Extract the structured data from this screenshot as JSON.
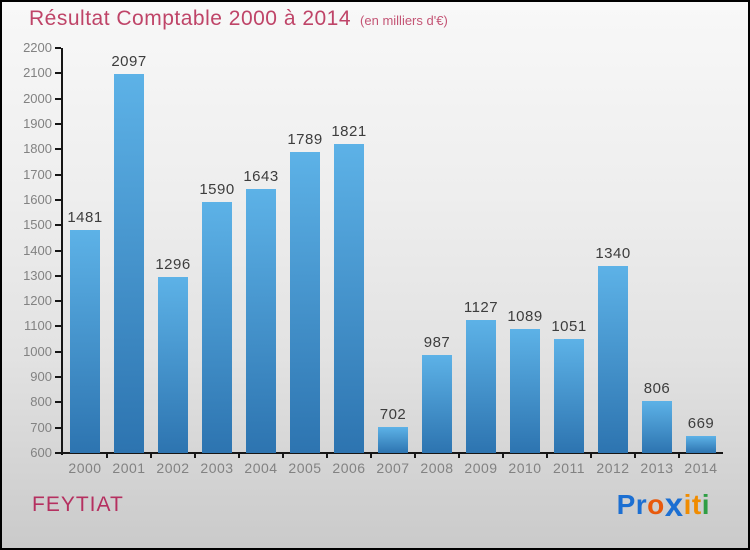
{
  "header": {
    "title": "Résultat Comptable 2000 à 2014",
    "subtitle": "(en milliers d'€)",
    "title_color": "#bf4468"
  },
  "chart_data": {
    "type": "bar",
    "title": "Résultat Comptable 2000 à 2014",
    "subtitle": "(en milliers d'€)",
    "categories": [
      "2000",
      "2001",
      "2002",
      "2003",
      "2004",
      "2005",
      "2006",
      "2007",
      "2008",
      "2009",
      "2010",
      "2011",
      "2012",
      "2013",
      "2014"
    ],
    "values": [
      1481,
      2097,
      1296,
      1590,
      1643,
      1789,
      1821,
      702,
      987,
      1127,
      1089,
      1051,
      1340,
      806,
      669
    ],
    "xlabel": "",
    "ylabel": "",
    "ylim": [
      600,
      2200
    ],
    "ytick_step": 100,
    "grid": false,
    "legend": false,
    "value_labels_shown": true,
    "bar_gradient_top": "#5db2e7",
    "bar_gradient_bottom": "#2d74b0",
    "axis_color": "#161616",
    "tick_label_color": "#828282",
    "value_label_color": "#3d3d3d"
  },
  "footer": {
    "place": "FEYTIAT",
    "place_color": "#b53060",
    "logo_text": "Proxiti",
    "logo_segments": [
      {
        "text": "Pr",
        "color": "#1c6fd2",
        "is_x": false
      },
      {
        "text": "o",
        "color": "#e8590c",
        "is_x": false
      },
      {
        "text": "x",
        "color": "#1c6fd2",
        "is_x": true
      },
      {
        "text": "i",
        "color": "#f08c00",
        "is_x": false
      },
      {
        "text": "t",
        "color": "#f08c00",
        "is_x": false
      },
      {
        "text": "i",
        "color": "#2f9e44",
        "is_x": false
      }
    ]
  }
}
